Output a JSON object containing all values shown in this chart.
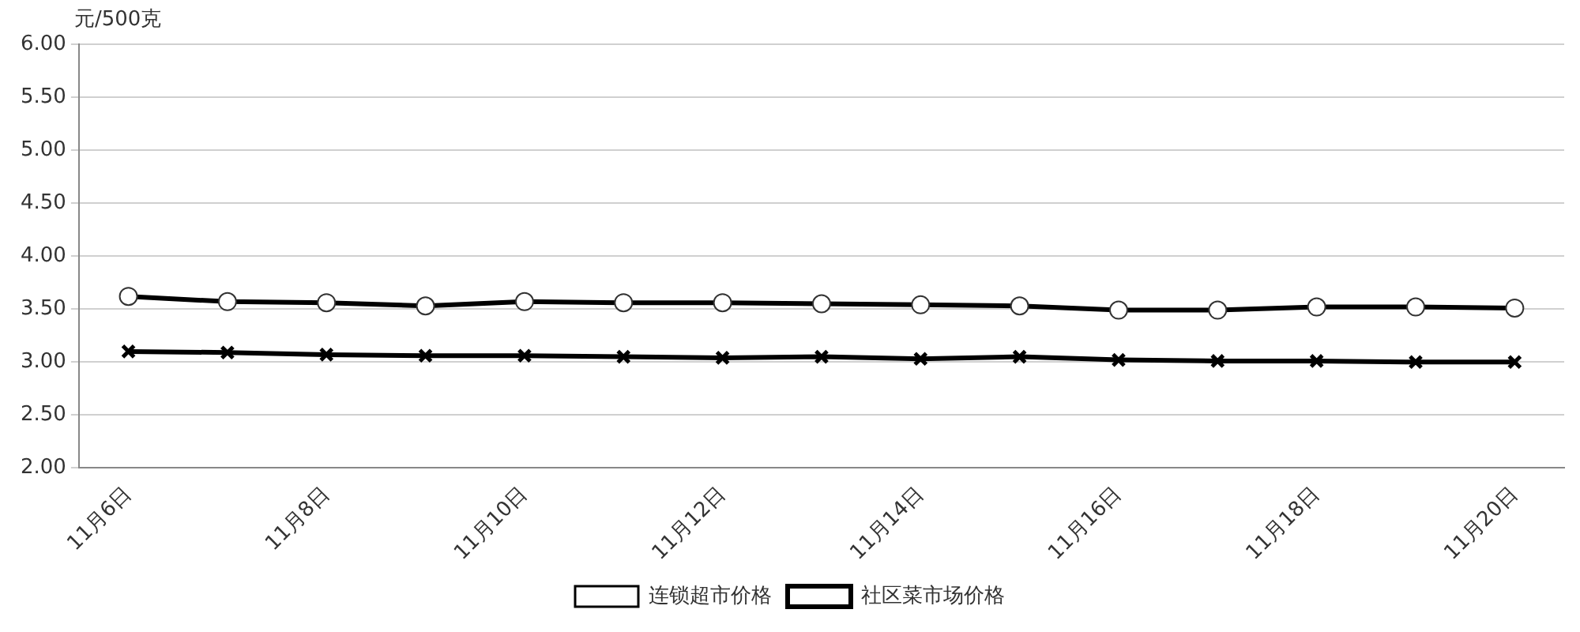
{
  "chart_data": {
    "type": "line",
    "ylabel": "元/500克",
    "categories": [
      "11月6日",
      null,
      "11月8日",
      null,
      "11月10日",
      null,
      "11月12日",
      null,
      "11月14日",
      null,
      "11月16日",
      null,
      "11月18日",
      null,
      "11月20日"
    ],
    "series": [
      {
        "name": "连锁超市价格",
        "color": "#000000",
        "marker": "circle",
        "values": [
          3.62,
          3.57,
          3.56,
          3.53,
          3.57,
          3.56,
          3.56,
          3.55,
          3.54,
          3.53,
          3.49,
          3.49,
          3.52,
          3.52,
          3.51
        ]
      },
      {
        "name": "社区菜市场价格",
        "color": "#000000",
        "marker": "cross",
        "values": [
          3.1,
          3.09,
          3.07,
          3.06,
          3.06,
          3.05,
          3.04,
          3.05,
          3.03,
          3.05,
          3.02,
          3.01,
          3.01,
          3.0,
          3.0
        ]
      }
    ],
    "ylim": [
      2,
      6
    ],
    "yticks": [
      {
        "value": 2,
        "label": "2.00"
      },
      {
        "value": 2.5,
        "label": "2.50"
      },
      {
        "value": 3,
        "label": "3.00"
      },
      {
        "value": 3.5,
        "label": "3.50"
      },
      {
        "value": 4,
        "label": "4.00"
      },
      {
        "value": 4.5,
        "label": "4.50"
      },
      {
        "value": 5,
        "label": "5.00"
      },
      {
        "value": 5.5,
        "label": "5.50"
      },
      {
        "value": 6,
        "label": "6.00"
      }
    ],
    "grid": "y",
    "legend": "bottom"
  }
}
